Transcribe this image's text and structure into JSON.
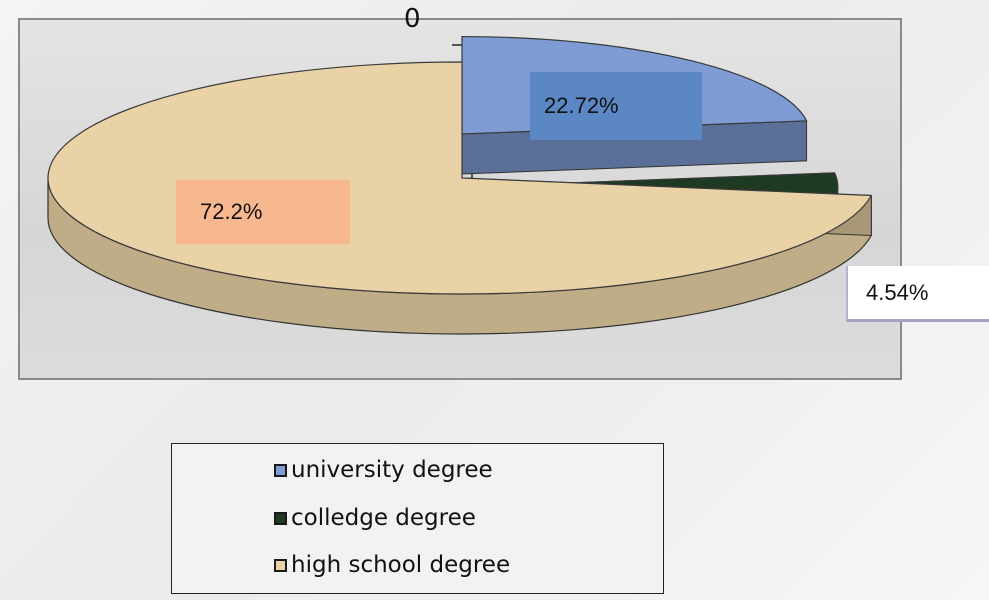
{
  "chart_data": {
    "type": "pie",
    "categories": [
      "university degree",
      "colledge degree",
      "high school degree"
    ],
    "values": [
      22.72,
      4.54,
      72.2
    ],
    "value_labels": [
      "22.72%",
      "4.54%",
      "72.2%"
    ],
    "colors": [
      "#7f9bd4",
      "#1e3a22",
      "#e9d3a6"
    ],
    "label_colors": [
      "#5b87c5",
      "#ffffff",
      "#f8b88f"
    ],
    "extra_label": "0",
    "legend": [
      "university degree",
      "colledge degree",
      "high school degree"
    ],
    "legend_position": "bottom",
    "title": "",
    "style": "3d-exploded"
  }
}
